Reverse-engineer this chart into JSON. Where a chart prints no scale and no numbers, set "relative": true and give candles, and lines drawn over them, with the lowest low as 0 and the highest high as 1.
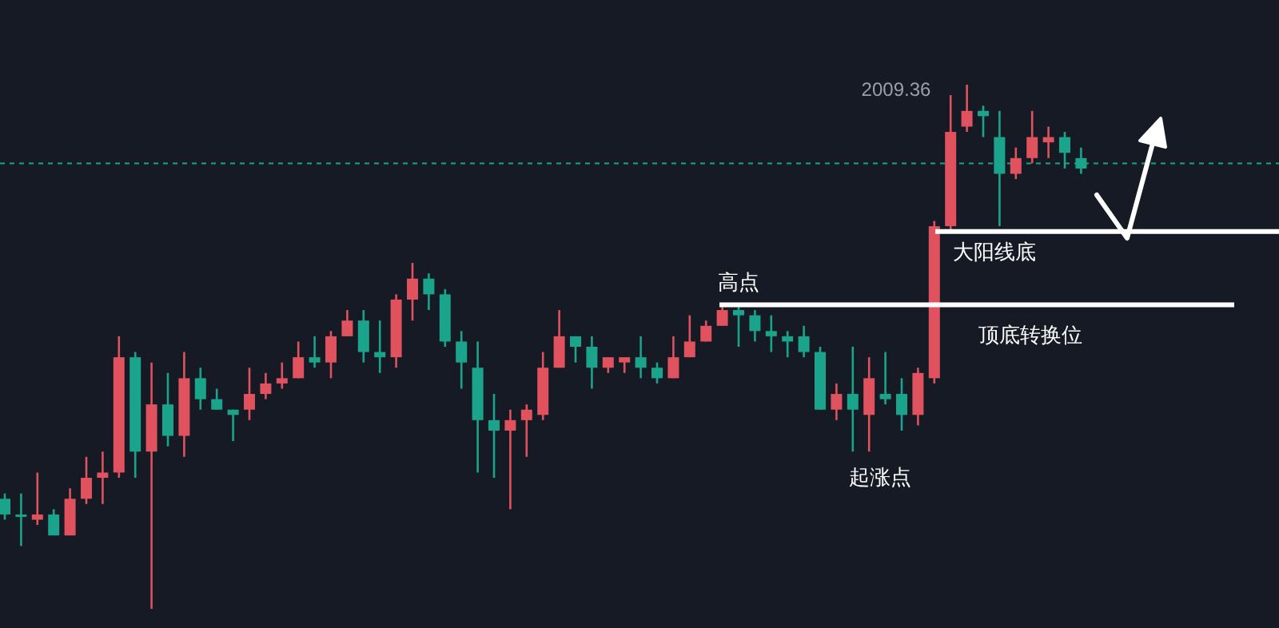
{
  "chart_data": {
    "type": "candlestick",
    "relative": true,
    "categories": [
      null,
      null,
      null,
      null,
      null,
      null,
      null,
      null,
      null,
      null,
      null,
      null,
      null,
      null,
      null,
      null,
      null,
      null,
      null,
      null,
      null,
      null,
      null,
      null,
      null,
      null,
      null,
      null,
      null,
      null,
      null,
      null,
      null,
      null,
      null,
      null,
      null,
      null,
      null,
      null,
      null,
      null,
      null,
      null,
      null,
      null,
      null,
      null,
      null,
      null,
      null,
      null,
      null,
      null,
      null,
      null,
      null,
      null,
      null,
      null,
      null,
      null,
      null,
      null,
      null,
      null,
      null
    ],
    "ohlc": [
      [
        0.21,
        0.22,
        0.17,
        0.18
      ],
      [
        0.18,
        0.22,
        0.12,
        0.18
      ],
      [
        0.17,
        0.26,
        0.16,
        0.18
      ],
      [
        0.18,
        0.19,
        0.14,
        0.14
      ],
      [
        0.14,
        0.23,
        0.14,
        0.21
      ],
      [
        0.21,
        0.29,
        0.2,
        0.25
      ],
      [
        0.25,
        0.3,
        0.2,
        0.26
      ],
      [
        0.26,
        0.52,
        0.25,
        0.48
      ],
      [
        0.48,
        0.49,
        0.25,
        0.3
      ],
      [
        0.3,
        0.47,
        0,
        0.39
      ],
      [
        0.39,
        0.45,
        0.31,
        0.33
      ],
      [
        0.33,
        0.49,
        0.29,
        0.44
      ],
      [
        0.44,
        0.46,
        0.38,
        0.4
      ],
      [
        0.4,
        0.42,
        0.38,
        0.38
      ],
      [
        0.38,
        0.38,
        0.32,
        0.37
      ],
      [
        0.38,
        0.46,
        0.36,
        0.41
      ],
      [
        0.41,
        0.45,
        0.4,
        0.43
      ],
      [
        0.43,
        0.47,
        0.42,
        0.44
      ],
      [
        0.44,
        0.51,
        0.44,
        0.48
      ],
      [
        0.48,
        0.52,
        0.46,
        0.47
      ],
      [
        0.47,
        0.53,
        0.44,
        0.52
      ],
      [
        0.52,
        0.57,
        0.52,
        0.55
      ],
      [
        0.55,
        0.57,
        0.47,
        0.49
      ],
      [
        0.49,
        0.55,
        0.45,
        0.48
      ],
      [
        0.48,
        0.6,
        0.46,
        0.59
      ],
      [
        0.59,
        0.66,
        0.55,
        0.63
      ],
      [
        0.63,
        0.64,
        0.57,
        0.6
      ],
      [
        0.6,
        0.61,
        0.5,
        0.51
      ],
      [
        0.51,
        0.53,
        0.42,
        0.47
      ],
      [
        0.46,
        0.51,
        0.26,
        0.36
      ],
      [
        0.36,
        0.41,
        0.25,
        0.34
      ],
      [
        0.34,
        0.38,
        0.19,
        0.36
      ],
      [
        0.36,
        0.39,
        0.29,
        0.38
      ],
      [
        0.37,
        0.49,
        0.36,
        0.46
      ],
      [
        0.46,
        0.57,
        0.46,
        0.52
      ],
      [
        0.52,
        0.52,
        0.47,
        0.5
      ],
      [
        0.5,
        0.52,
        0.42,
        0.46
      ],
      [
        0.46,
        0.48,
        0.45,
        0.48
      ],
      [
        0.47,
        0.48,
        0.45,
        0.48
      ],
      [
        0.48,
        0.52,
        0.44,
        0.46
      ],
      [
        0.46,
        0.47,
        0.43,
        0.44
      ],
      [
        0.44,
        0.52,
        0.44,
        0.48
      ],
      [
        0.48,
        0.56,
        0.48,
        0.51
      ],
      [
        0.51,
        0.55,
        0.51,
        0.54
      ],
      [
        0.54,
        0.58,
        0.54,
        0.57
      ],
      [
        0.57,
        0.58,
        0.5,
        0.56
      ],
      [
        0.56,
        0.57,
        0.51,
        0.53
      ],
      [
        0.53,
        0.56,
        0.49,
        0.52
      ],
      [
        0.52,
        0.53,
        0.48,
        0.51
      ],
      [
        0.52,
        0.54,
        0.48,
        0.49
      ],
      [
        0.49,
        0.5,
        0.38,
        0.38
      ],
      [
        0.38,
        0.43,
        0.36,
        0.41
      ],
      [
        0.41,
        0.5,
        0.3,
        0.38
      ],
      [
        0.37,
        0.48,
        0.3,
        0.44
      ],
      [
        0.41,
        0.49,
        0.39,
        0.4
      ],
      [
        0.41,
        0.44,
        0.34,
        0.37
      ],
      [
        0.37,
        0.46,
        0.35,
        0.45
      ],
      [
        0.44,
        0.74,
        0.43,
        0.73
      ],
      [
        0.73,
        0.98,
        0.72,
        0.91
      ],
      [
        0.92,
        1,
        0.91,
        0.95
      ],
      [
        0.95,
        0.96,
        0.9,
        0.94
      ],
      [
        0.9,
        0.95,
        0.73,
        0.83
      ],
      [
        0.83,
        0.88,
        0.82,
        0.86
      ],
      [
        0.86,
        0.95,
        0.85,
        0.9
      ],
      [
        0.89,
        0.92,
        0.86,
        0.9
      ],
      [
        0.9,
        0.91,
        0.84,
        0.87
      ],
      [
        0.86,
        0.88,
        0.83,
        0.84
      ]
    ],
    "colors": [
      "#1aa48b",
      "#1aa48b",
      "#e0525e",
      "#1aa48b",
      "#e0525e",
      "#e0525e",
      "#e0525e",
      "#e0525e",
      "#1aa48b",
      "#e0525e",
      "#1aa48b",
      "#e0525e",
      "#1aa48b",
      "#1aa48b",
      "#1aa48b",
      "#e0525e",
      "#e0525e",
      "#e0525e",
      "#e0525e",
      "#1aa48b",
      "#e0525e",
      "#e0525e",
      "#1aa48b",
      "#1aa48b",
      "#e0525e",
      "#e0525e",
      "#1aa48b",
      "#1aa48b",
      "#1aa48b",
      "#1aa48b",
      "#1aa48b",
      "#e0525e",
      "#e0525e",
      "#e0525e",
      "#e0525e",
      "#1aa48b",
      "#1aa48b",
      "#e0525e",
      "#e0525e",
      "#1aa48b",
      "#1aa48b",
      "#e0525e",
      "#e0525e",
      "#e0525e",
      "#e0525e",
      "#1aa48b",
      "#1aa48b",
      "#1aa48b",
      "#1aa48b",
      "#1aa48b",
      "#1aa48b",
      "#e0525e",
      "#1aa48b",
      "#e0525e",
      "#1aa48b",
      "#1aa48b",
      "#e0525e",
      "#e0525e",
      "#e0525e",
      "#e0525e",
      "#1aa48b",
      "#1aa48b",
      "#e0525e",
      "#e0525e",
      "#e0525e",
      "#1aa48b",
      "#1aa48b"
    ],
    "ref_lines": [
      {
        "axis": "y",
        "value": 0.58,
        "label": "顶底转换位",
        "color": "#ffffff"
      },
      {
        "axis": "y",
        "value": 0.72,
        "label": "大阳线底",
        "color": "#ffffff"
      },
      {
        "axis": "y",
        "value": 0.85,
        "color": "#1aa48b",
        "line_style": "dashed"
      }
    ],
    "annotations": [
      "高点",
      "起涨点",
      "2009.36"
    ]
  }
}
